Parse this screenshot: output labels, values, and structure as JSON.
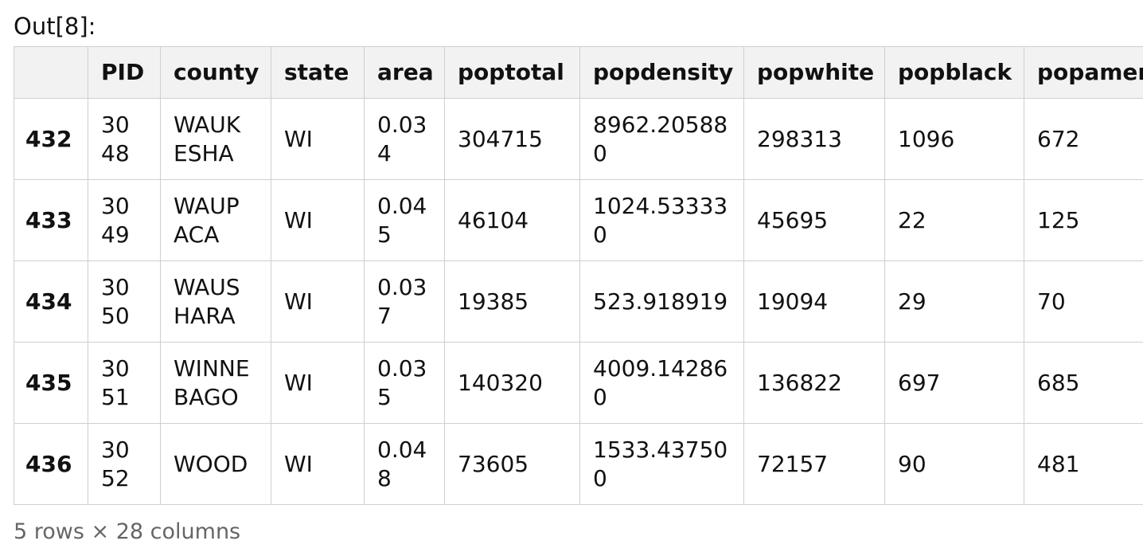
{
  "prompt": "Out[8]:",
  "table": {
    "columns": [
      "PID",
      "county",
      "state",
      "area",
      "poptotal",
      "popdensity",
      "popwhite",
      "popblack",
      "popamer"
    ],
    "index": [
      "432",
      "433",
      "434",
      "435",
      "436"
    ],
    "rows": [
      [
        "3048",
        "WAUKESHA",
        "WI",
        "0.034",
        "304715",
        "8962.205880",
        "298313",
        "1096",
        "672"
      ],
      [
        "3049",
        "WAUPACA",
        "WI",
        "0.045",
        "46104",
        "1024.533330",
        "45695",
        "22",
        "125"
      ],
      [
        "3050",
        "WAUSHARA",
        "WI",
        "0.037",
        "19385",
        "523.918919",
        "19094",
        "29",
        "70"
      ],
      [
        "3051",
        "WINNEBAGO",
        "WI",
        "0.035",
        "140320",
        "4009.142860",
        "136822",
        "697",
        "685"
      ],
      [
        "3052",
        "WOOD",
        "WI",
        "0.048",
        "73605",
        "1533.437500",
        "72157",
        "90",
        "481"
      ]
    ]
  },
  "footer": "5 rows × 28 columns"
}
